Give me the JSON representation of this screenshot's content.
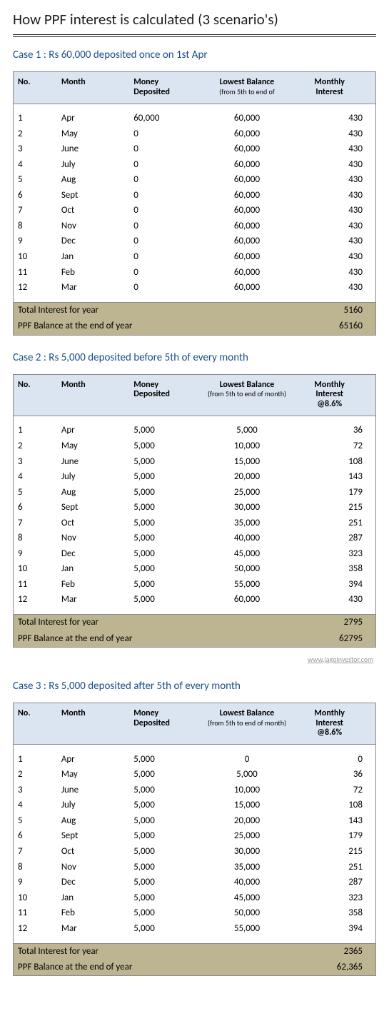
{
  "main_title": "How PPF interest is calculated (3 scenario's)",
  "attribution": "www.jagoinvestor.com",
  "colors": {
    "title_blue": "#1a4e8a",
    "header_fill": "#dbe5f1",
    "footer_fill": "#bdb592",
    "border": "#8a8a8a",
    "text": "#000000",
    "attribution": "#9a9a9a"
  },
  "columns": {
    "no": "No.",
    "month": "Month",
    "deposited": "Money Deposited",
    "lowest_balance": "Lowest Balance",
    "lowest_balance_sub": "(from 5th to end of month)",
    "lowest_balance_sub_short": "(from 5th to end of",
    "interest_plain": "Monthly Interest",
    "interest_rate": "Monthly Interest @8.6%"
  },
  "totals_labels": {
    "total_interest": "Total Interest for year",
    "ppf_balance": "PPF Balance at the end of year"
  },
  "cases": [
    {
      "title": "Case 1 : Rs 60,000 deposited once on 1st Apr",
      "interest_header": "plain",
      "lb_sub": "short",
      "rows": [
        {
          "no": "1",
          "month": "Apr",
          "dep": "60,000",
          "lb": "60,000",
          "int": "430"
        },
        {
          "no": "2",
          "month": "May",
          "dep": "0",
          "lb": "60,000",
          "int": "430"
        },
        {
          "no": "3",
          "month": "June",
          "dep": "0",
          "lb": "60,000",
          "int": "430"
        },
        {
          "no": "4",
          "month": "July",
          "dep": "0",
          "lb": "60,000",
          "int": "430"
        },
        {
          "no": "5",
          "month": "Aug",
          "dep": "0",
          "lb": "60,000",
          "int": "430"
        },
        {
          "no": "6",
          "month": "Sept",
          "dep": "0",
          "lb": "60,000",
          "int": "430"
        },
        {
          "no": "7",
          "month": "Oct",
          "dep": "0",
          "lb": "60,000",
          "int": "430"
        },
        {
          "no": "8",
          "month": "Nov",
          "dep": "0",
          "lb": "60,000",
          "int": "430"
        },
        {
          "no": "9",
          "month": "Dec",
          "dep": "0",
          "lb": "60,000",
          "int": "430"
        },
        {
          "no": "10",
          "month": "Jan",
          "dep": "0",
          "lb": "60,000",
          "int": "430"
        },
        {
          "no": "11",
          "month": "Feb",
          "dep": "0",
          "lb": "60,000",
          "int": "430"
        },
        {
          "no": "12",
          "month": "Mar",
          "dep": "0",
          "lb": "60,000",
          "int": "430"
        }
      ],
      "total_interest": "5160",
      "ppf_balance": "65160",
      "show_attribution": false
    },
    {
      "title": "Case 2 : Rs 5,000 deposited before 5th of every month",
      "interest_header": "rate",
      "lb_sub": "full",
      "rows": [
        {
          "no": "1",
          "month": "Apr",
          "dep": "5,000",
          "lb": "5,000",
          "int": "36"
        },
        {
          "no": "2",
          "month": "May",
          "dep": "5,000",
          "lb": "10,000",
          "int": "72"
        },
        {
          "no": "3",
          "month": "June",
          "dep": "5,000",
          "lb": "15,000",
          "int": "108"
        },
        {
          "no": "4",
          "month": "July",
          "dep": "5,000",
          "lb": "20,000",
          "int": "143"
        },
        {
          "no": "5",
          "month": "Aug",
          "dep": "5,000",
          "lb": "25,000",
          "int": "179"
        },
        {
          "no": "6",
          "month": "Sept",
          "dep": "5,000",
          "lb": "30,000",
          "int": "215"
        },
        {
          "no": "7",
          "month": "Oct",
          "dep": "5,000",
          "lb": "35,000",
          "int": "251"
        },
        {
          "no": "8",
          "month": "Nov",
          "dep": "5,000",
          "lb": "40,000",
          "int": "287"
        },
        {
          "no": "9",
          "month": "Dec",
          "dep": "5,000",
          "lb": "45,000",
          "int": "323"
        },
        {
          "no": "10",
          "month": "Jan",
          "dep": "5,000",
          "lb": "50,000",
          "int": "358"
        },
        {
          "no": "11",
          "month": "Feb",
          "dep": "5,000",
          "lb": "55,000",
          "int": "394"
        },
        {
          "no": "12",
          "month": "Mar",
          "dep": "5,000",
          "lb": "60,000",
          "int": "430"
        }
      ],
      "total_interest": "2795",
      "ppf_balance": "62795",
      "show_attribution": true
    },
    {
      "title": "Case 3 : Rs 5,000 deposited after 5th of every month",
      "interest_header": "rate",
      "lb_sub": "full",
      "rows": [
        {
          "no": "1",
          "month": "Apr",
          "dep": "5,000",
          "lb": "0",
          "int": "0"
        },
        {
          "no": "2",
          "month": "May",
          "dep": "5,000",
          "lb": "5,000",
          "int": "36"
        },
        {
          "no": "3",
          "month": "June",
          "dep": "5,000",
          "lb": "10,000",
          "int": "72"
        },
        {
          "no": "4",
          "month": "July",
          "dep": "5,000",
          "lb": "15,000",
          "int": "108"
        },
        {
          "no": "5",
          "month": "Aug",
          "dep": "5,000",
          "lb": "20,000",
          "int": "143"
        },
        {
          "no": "6",
          "month": "Sept",
          "dep": "5,000",
          "lb": "25,000",
          "int": "179"
        },
        {
          "no": "7",
          "month": "Oct",
          "dep": "5,000",
          "lb": "30,000",
          "int": "215"
        },
        {
          "no": "8",
          "month": "Nov",
          "dep": "5,000",
          "lb": "35,000",
          "int": "251"
        },
        {
          "no": "9",
          "month": "Dec",
          "dep": "5,000",
          "lb": "40,000",
          "int": "287"
        },
        {
          "no": "10",
          "month": "Jan",
          "dep": "5,000",
          "lb": "45,000",
          "int": "323"
        },
        {
          "no": "11",
          "month": "Feb",
          "dep": "5,000",
          "lb": "50,000",
          "int": "358"
        },
        {
          "no": "12",
          "month": "Mar",
          "dep": "5,000",
          "lb": "55,000",
          "int": "394"
        }
      ],
      "total_interest": "2365",
      "ppf_balance": "62,365",
      "show_attribution": false
    }
  ]
}
